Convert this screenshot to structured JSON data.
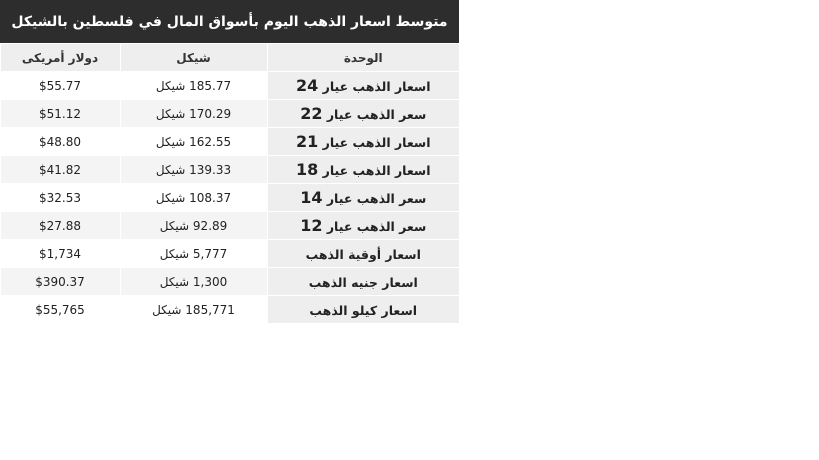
{
  "title": "متوسط اسعار الذهب اليوم بأسواق المال في فلسطين بالشيكل",
  "headers": {
    "unit": "الوحدة",
    "shekel": "شيكل",
    "usd": "دولار أمريكى"
  },
  "rows": [
    {
      "unit": "اسعار الذهب عيار ",
      "karat": "24",
      "shekel": "185.77 شيكل",
      "usd": "$55.77"
    },
    {
      "unit": "سعر الذهب عيار ",
      "karat": "22",
      "shekel": "170.29 شيكل",
      "usd": "$51.12"
    },
    {
      "unit": "اسعار الذهب عيار ",
      "karat": "21",
      "shekel": "162.55 شيكل",
      "usd": "$48.80"
    },
    {
      "unit": "اسعار الذهب عيار ",
      "karat": "18",
      "shekel": "139.33 شيكل",
      "usd": "$41.82"
    },
    {
      "unit": "سعر الذهب عيار ",
      "karat": "14",
      "shekel": "108.37 شيكل",
      "usd": "$32.53"
    },
    {
      "unit": "سعر الذهب عيار ",
      "karat": "12",
      "shekel": "92.89 شيكل",
      "usd": "$27.88"
    },
    {
      "unit": "اسعار أوقية الذهب",
      "karat": "",
      "shekel": "5,777 شيكل",
      "usd": "$1,734"
    },
    {
      "unit": "اسعار جنيه الذهب",
      "karat": "",
      "shekel": "1,300 شيكل",
      "usd": "$390.37"
    },
    {
      "unit": "اسعار كيلو الذهب",
      "karat": "",
      "shekel": "185,771 شيكل",
      "usd": "$55,765"
    }
  ]
}
